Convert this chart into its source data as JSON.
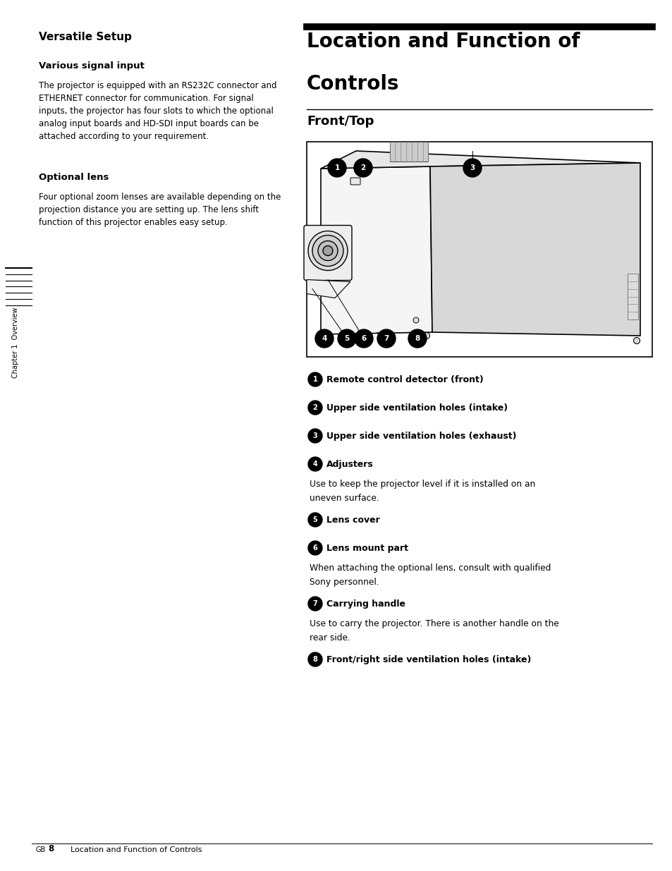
{
  "bg_color": "#ffffff",
  "page_width": 9.54,
  "page_height": 12.35,
  "left_section_title": "Versatile Setup",
  "left_subsection1_title": "Various signal input",
  "left_subsection1_body": "The projector is equipped with an RS232C connector and\nETHERNET connector for communication. For signal\ninputs, the projector has four slots to which the optional\nanalog input boards and HD-SDI input boards can be\nattached according to your requirement.",
  "left_subsection2_title": "Optional lens",
  "left_subsection2_body": "Four optional zoom lenses are available depending on the\nprojection distance you are setting up. The lens shift\nfunction of this projector enables easy setup.",
  "sidebar_label": "Chapter 1  Overview",
  "right_main_title_line1": "Location and Function of",
  "right_main_title_line2": "Controls",
  "right_sub_title": "Front/Top",
  "items": [
    {
      "num": "1",
      "bold_text": "Remote control detector (front)",
      "body": ""
    },
    {
      "num": "2",
      "bold_text": "Upper side ventilation holes (intake)",
      "body": ""
    },
    {
      "num": "3",
      "bold_text": "Upper side ventilation holes (exhaust)",
      "body": ""
    },
    {
      "num": "4",
      "bold_text": "Adjusters",
      "body": "Use to keep the projector level if it is installed on an\nuneven surface."
    },
    {
      "num": "5",
      "bold_text": "Lens cover",
      "body": ""
    },
    {
      "num": "6",
      "bold_text": "Lens mount part",
      "body": "When attaching the optional lens, consult with qualified\nSony personnel."
    },
    {
      "num": "7",
      "bold_text": "Carrying handle",
      "body": "Use to carry the projector. There is another handle on the\nrear side."
    },
    {
      "num": "8",
      "bold_text": "Front/right side ventilation holes (intake)",
      "body": ""
    }
  ],
  "footer_left": "GB",
  "footer_page": "8",
  "footer_text": "Location and Function of Controls"
}
